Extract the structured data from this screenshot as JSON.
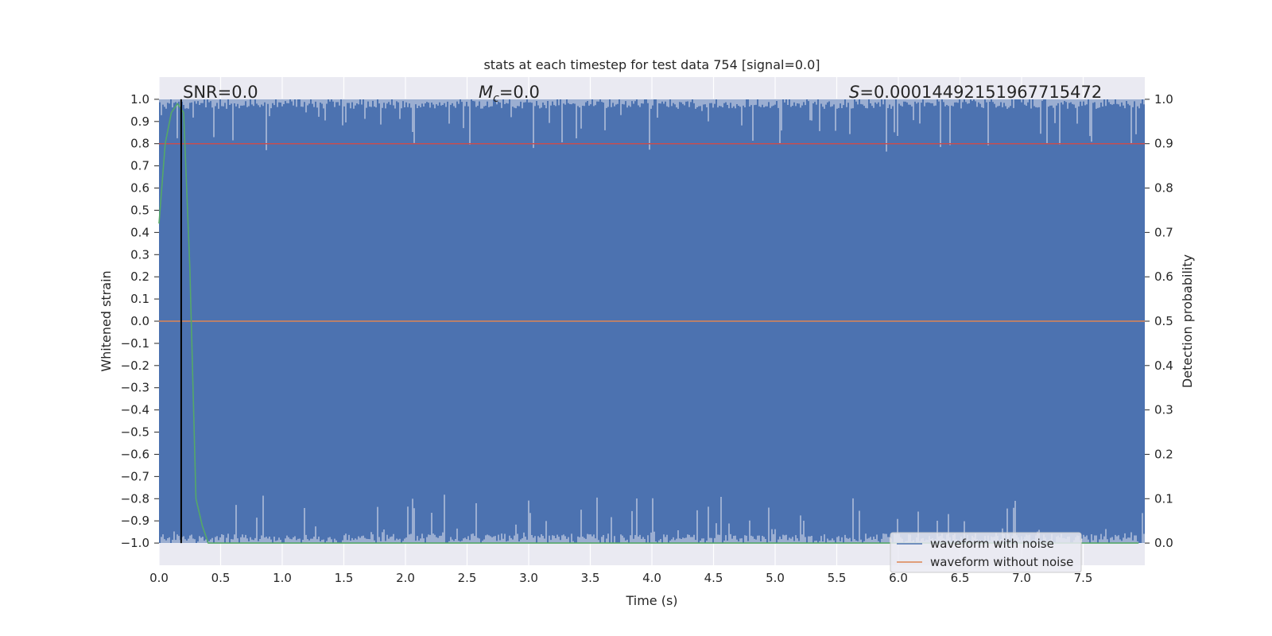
{
  "chart_data": {
    "type": "line",
    "title": "stats at each timestep for test data 754 [signal=0.0]",
    "xlabel": "Time (s)",
    "ylabel_left": "Whitened strain",
    "ylabel_right": "Detection probability",
    "xlim": [
      0.0,
      8.0
    ],
    "ylim_left": [
      -1.1,
      1.1
    ],
    "ylim_right": [
      -0.05,
      1.05
    ],
    "x_ticks": [
      "0.0",
      "0.5",
      "1.0",
      "1.5",
      "2.0",
      "2.5",
      "3.0",
      "3.5",
      "4.0",
      "4.5",
      "5.0",
      "5.5",
      "6.0",
      "6.5",
      "7.0",
      "7.5"
    ],
    "y_ticks_left": [
      "1.0",
      "0.9",
      "0.8",
      "0.7",
      "0.6",
      "0.5",
      "0.4",
      "0.3",
      "0.2",
      "0.1",
      "0.0",
      "−0.1",
      "−0.2",
      "−0.3",
      "−0.4",
      "−0.5",
      "−0.6",
      "−0.7",
      "−0.8",
      "−0.9",
      "−1.0"
    ],
    "y_ticks_right": [
      "1.0",
      "0.9",
      "0.8",
      "0.7",
      "0.6",
      "0.5",
      "0.4",
      "0.3",
      "0.2",
      "0.1",
      "0.0"
    ],
    "grid": true,
    "legend_position": "lower-right",
    "annotations": {
      "snr": "SNR=0.0",
      "mc_symbol": "M",
      "mc_sub": "c",
      "mc_value": "=0.0",
      "s_symbol": "S",
      "s_value": "=0.00014492151967715472"
    },
    "series": [
      {
        "name": "waveform with noise",
        "axis": "left",
        "color": "#4c72b0",
        "description_range": [
          -1.0,
          1.0
        ]
      },
      {
        "name": "waveform without noise",
        "axis": "left",
        "color": "#dd8452",
        "x": [
          0.0,
          8.0
        ],
        "y": [
          0.0,
          0.0
        ]
      },
      {
        "name": "detection probability",
        "axis": "right",
        "color": "#55a868",
        "x": [
          0.0,
          0.05,
          0.1,
          0.15,
          0.2,
          0.25,
          0.3,
          0.35,
          0.4,
          1.0,
          2.0,
          3.0,
          4.0,
          5.0,
          6.0,
          7.0,
          7.95
        ],
        "y": [
          0.72,
          0.9,
          0.97,
          0.99,
          0.97,
          0.62,
          0.1,
          0.04,
          0.0,
          0.0,
          0.0,
          0.0,
          0.0,
          0.0,
          0.0,
          0.0,
          0.0
        ]
      }
    ],
    "threshold": {
      "axis": "right",
      "value": 0.9,
      "color": "#c44e52"
    },
    "marker_line": {
      "x": 0.18,
      "color": "#000000"
    },
    "colors": {
      "plot_bg": "#eaeaf2",
      "grid": "#ffffff",
      "noise": "#4c72b0",
      "clean": "#dd8452",
      "prob": "#55a868",
      "threshold": "#c44e52"
    }
  }
}
